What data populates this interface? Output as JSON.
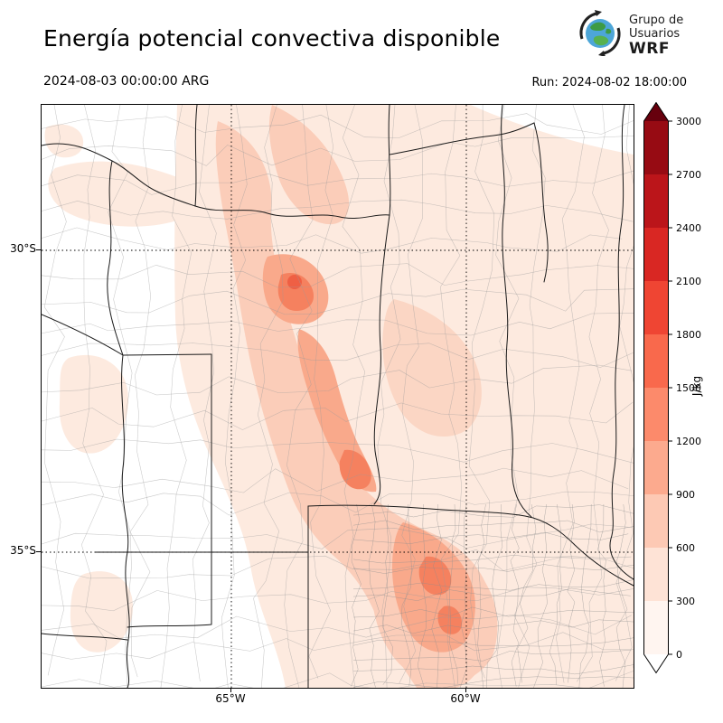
{
  "header": {
    "title": "Energía potencial convectiva disponible",
    "logo": {
      "line1": "Grupo de",
      "line2": "Usuarios",
      "line3": "WRF"
    }
  },
  "subheader": {
    "valid_time": "2024-08-03 00:00:00 ARG",
    "run": "Run: 2024-08-02 18:00:00"
  },
  "axes": {
    "lat": [
      "30°S",
      "35°S"
    ],
    "lon": [
      "65°W",
      "60°W"
    ]
  },
  "colorbar": {
    "unit": "J/kg",
    "ticks": [
      "3000",
      "2700",
      "2400",
      "2100",
      "1800",
      "1500",
      "1200",
      "900",
      "600",
      "300",
      "0"
    ],
    "colors_top_to_bottom": [
      "#970b13",
      "#bb151a",
      "#d92723",
      "#ef4533",
      "#f9694c",
      "#fc8a6b",
      "#fcaa8e",
      "#fdc9b4",
      "#fee3d6",
      "#fff5f0"
    ],
    "over_color": "#67000d",
    "under_color": "#ffffff"
  },
  "chart_data": {
    "type": "heatmap",
    "title": "Energía potencial convectiva disponible",
    "unit": "J/kg",
    "levels": [
      0,
      300,
      600,
      900,
      1200,
      1500,
      1800,
      2100,
      2400,
      2700,
      3000
    ],
    "valid_time": "2024-08-03 00:00:00 ARG",
    "run": "Run: 2024-08-02 18:00:00",
    "lat_ticks": [
      "30°S",
      "35°S"
    ],
    "lon_ticks": [
      "65°W",
      "60°W"
    ],
    "legend_position": "right",
    "notes_visible_extent": "shaded band of high values runs diagonally from north-center to south-east of the mapped region"
  }
}
